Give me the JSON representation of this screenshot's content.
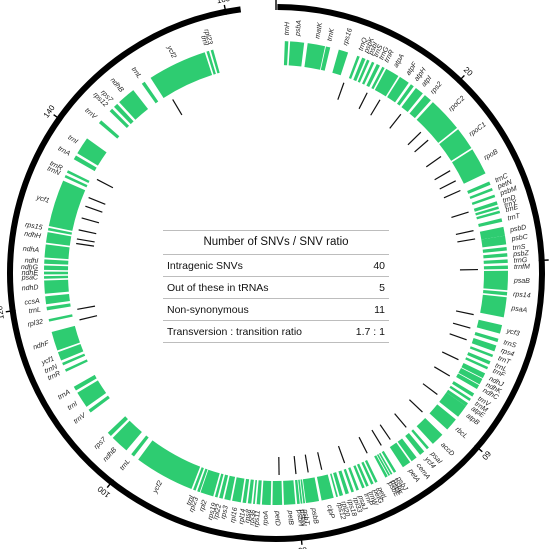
{
  "genome_map": {
    "total_kb": 165,
    "ticks": [
      {
        "pos": 0,
        "label": "0"
      },
      {
        "pos": 20,
        "label": "20"
      },
      {
        "pos": 40,
        "label": "40"
      },
      {
        "pos": 60,
        "label": "60"
      },
      {
        "pos": 80,
        "label": "80"
      },
      {
        "pos": 100,
        "label": "100"
      },
      {
        "pos": 120,
        "label": "120"
      },
      {
        "pos": 140,
        "label": "140"
      },
      {
        "pos": 160,
        "label": "160"
      }
    ],
    "gene_color": "#2ecc71",
    "snv_color": "#111111",
    "genes": [
      {
        "name": "trnH",
        "start": 1.0,
        "end": 1.4
      },
      {
        "name": "psbA",
        "start": 1.6,
        "end": 3.2
      },
      {
        "name": "matK",
        "start": 3.6,
        "end": 5.6
      },
      {
        "name": "trnK",
        "start": 5.7,
        "end": 6.2
      },
      {
        "name": "rps16",
        "start": 7.2,
        "end": 8.3
      },
      {
        "name": "trnQ",
        "start": 9.4,
        "end": 9.7
      },
      {
        "name": "psbK",
        "start": 10.0,
        "end": 10.4
      },
      {
        "name": "psbI",
        "start": 10.6,
        "end": 10.9
      },
      {
        "name": "trnS",
        "start": 11.2,
        "end": 11.5
      },
      {
        "name": "trnG",
        "start": 11.8,
        "end": 12.2
      },
      {
        "name": "trnR",
        "start": 12.5,
        "end": 12.8
      },
      {
        "name": "atpA",
        "start": 13.0,
        "end": 14.6
      },
      {
        "name": "atpF",
        "start": 14.8,
        "end": 16.0
      },
      {
        "name": "atpH",
        "start": 16.3,
        "end": 16.7
      },
      {
        "name": "atpI",
        "start": 17.0,
        "end": 18.0
      },
      {
        "name": "rps2",
        "start": 18.3,
        "end": 19.2
      },
      {
        "name": "rpoC2",
        "start": 19.5,
        "end": 23.5
      },
      {
        "name": "rpoC1",
        "start": 23.7,
        "end": 26.3
      },
      {
        "name": "rpoB",
        "start": 26.5,
        "end": 29.6
      },
      {
        "name": "trnC",
        "start": 30.6,
        "end": 31.0
      },
      {
        "name": "petN",
        "start": 31.4,
        "end": 31.7
      },
      {
        "name": "psbM",
        "start": 32.2,
        "end": 32.5
      },
      {
        "name": "trnD",
        "start": 33.0,
        "end": 33.4
      },
      {
        "name": "trnY",
        "start": 33.6,
        "end": 33.9
      },
      {
        "name": "trnE",
        "start": 34.1,
        "end": 34.4
      },
      {
        "name": "trnT",
        "start": 35.0,
        "end": 35.4
      },
      {
        "name": "psbD",
        "start": 36.0,
        "end": 37.0
      },
      {
        "name": "psbC",
        "start": 37.0,
        "end": 38.0
      },
      {
        "name": "trnS",
        "start": 38.3,
        "end": 38.7
      },
      {
        "name": "psbZ",
        "start": 39.0,
        "end": 39.4
      },
      {
        "name": "trnG",
        "start": 39.7,
        "end": 40.1
      },
      {
        "name": "trnfM",
        "start": 40.4,
        "end": 40.8
      },
      {
        "name": "psaB",
        "start": 41.0,
        "end": 43.2
      },
      {
        "name": "rps14",
        "start": 43.4,
        "end": 43.8
      },
      {
        "name": "psaA",
        "start": 44.0,
        "end": 46.3
      },
      {
        "name": "ycf3",
        "start": 47.2,
        "end": 48.2
      },
      {
        "name": "trnS",
        "start": 48.8,
        "end": 49.2
      },
      {
        "name": "rps4",
        "start": 49.6,
        "end": 50.3
      },
      {
        "name": "trnT",
        "start": 50.7,
        "end": 51.0
      },
      {
        "name": "trnL",
        "start": 51.5,
        "end": 51.9
      },
      {
        "name": "trnF",
        "start": 52.2,
        "end": 52.5
      },
      {
        "name": "ndhJ",
        "start": 53.0,
        "end": 53.6
      },
      {
        "name": "ndhK",
        "start": 53.7,
        "end": 54.4
      },
      {
        "name": "ndhC",
        "start": 54.5,
        "end": 55.0
      },
      {
        "name": "trnV",
        "start": 55.6,
        "end": 56.0
      },
      {
        "name": "trnM",
        "start": 56.3,
        "end": 56.6
      },
      {
        "name": "atpE",
        "start": 56.9,
        "end": 57.3
      },
      {
        "name": "atpB",
        "start": 57.3,
        "end": 58.8
      },
      {
        "name": "rbcL",
        "start": 59.2,
        "end": 60.7
      },
      {
        "name": "accD",
        "start": 61.5,
        "end": 63.0
      },
      {
        "name": "psaI",
        "start": 63.6,
        "end": 63.9
      },
      {
        "name": "ycf4",
        "start": 64.3,
        "end": 64.9
      },
      {
        "name": "cemA",
        "start": 65.4,
        "end": 66.1
      },
      {
        "name": "petA",
        "start": 66.3,
        "end": 67.3
      },
      {
        "name": "psbJ",
        "start": 68.2,
        "end": 68.5
      },
      {
        "name": "psbL",
        "start": 68.7,
        "end": 68.9
      },
      {
        "name": "psbF",
        "start": 69.0,
        "end": 69.2
      },
      {
        "name": "psbE",
        "start": 69.3,
        "end": 69.6
      },
      {
        "name": "petL",
        "start": 70.6,
        "end": 70.9
      },
      {
        "name": "petG",
        "start": 71.1,
        "end": 71.4
      },
      {
        "name": "trnW",
        "start": 71.7,
        "end": 72.0
      },
      {
        "name": "trnP",
        "start": 72.2,
        "end": 72.5
      },
      {
        "name": "psaJ",
        "start": 72.9,
        "end": 73.2
      },
      {
        "name": "rpl33",
        "start": 73.5,
        "end": 73.8
      },
      {
        "name": "rps18",
        "start": 74.1,
        "end": 74.5
      },
      {
        "name": "rpl20",
        "start": 74.8,
        "end": 75.2
      },
      {
        "name": "rps12",
        "start": 75.4,
        "end": 75.6
      },
      {
        "name": "clpP",
        "start": 75.9,
        "end": 77.3
      },
      {
        "name": "psbB",
        "start": 77.6,
        "end": 79.1
      },
      {
        "name": "psbT",
        "start": 79.2,
        "end": 79.4
      },
      {
        "name": "psbN",
        "start": 79.5,
        "end": 79.7
      },
      {
        "name": "psbH",
        "start": 79.8,
        "end": 80.1
      },
      {
        "name": "petB",
        "start": 80.3,
        "end": 81.6
      },
      {
        "name": "petD",
        "start": 81.8,
        "end": 82.9
      },
      {
        "name": "rpoA",
        "start": 83.1,
        "end": 84.1
      },
      {
        "name": "rps11",
        "start": 84.3,
        "end": 84.7
      },
      {
        "name": "rpl36",
        "start": 84.9,
        "end": 85.1
      },
      {
        "name": "rps8",
        "start": 85.3,
        "end": 85.7
      },
      {
        "name": "rpl14",
        "start": 85.9,
        "end": 86.3
      },
      {
        "name": "rpl16",
        "start": 86.5,
        "end": 87.5
      },
      {
        "name": "rps3",
        "start": 87.7,
        "end": 88.4
      },
      {
        "name": "rpl22",
        "start": 88.6,
        "end": 89.0
      },
      {
        "name": "rps19",
        "start": 89.2,
        "end": 89.5
      },
      {
        "name": "rpl2",
        "start": 89.7,
        "end": 91.2
      },
      {
        "name": "rpl23",
        "start": 91.3,
        "end": 91.6
      },
      {
        "name": "trnI",
        "start": 91.8,
        "end": 92.1
      },
      {
        "name": "ycf2",
        "start": 92.3,
        "end": 99.2
      },
      {
        "name": "trnL",
        "start": 99.8,
        "end": 100.2
      },
      {
        "name": "ndhB",
        "start": 100.9,
        "end": 103.0
      },
      {
        "name": "rps7",
        "start": 103.3,
        "end": 103.8
      },
      {
        "name": "trnV",
        "start": 106.8,
        "end": 107.2
      },
      {
        "name": "trnI",
        "start": 107.6,
        "end": 109.5
      },
      {
        "name": "trnA",
        "start": 109.8,
        "end": 110.3
      },
      {
        "name": "trnR",
        "start": 112.2,
        "end": 112.5
      },
      {
        "name": "trnN",
        "start": 113.0,
        "end": 113.3
      },
      {
        "name": "ycf1",
        "start": 113.6,
        "end": 114.6
      },
      {
        "name": "ndhF",
        "start": 114.8,
        "end": 117.0
      },
      {
        "name": "rpl32",
        "start": 118.2,
        "end": 118.5
      },
      {
        "name": "trnL",
        "start": 119.5,
        "end": 119.9
      },
      {
        "name": "ccsA",
        "start": 120.2,
        "end": 121.1
      },
      {
        "name": "ndhD",
        "start": 121.4,
        "end": 122.9
      },
      {
        "name": "psaC",
        "start": 123.1,
        "end": 123.4
      },
      {
        "name": "ndhE",
        "start": 123.6,
        "end": 123.9
      },
      {
        "name": "ndhG",
        "start": 124.1,
        "end": 124.6
      },
      {
        "name": "ndhI",
        "start": 124.8,
        "end": 125.3
      },
      {
        "name": "ndhA",
        "start": 125.5,
        "end": 127.0
      },
      {
        "name": "ndhH",
        "start": 127.2,
        "end": 128.4
      },
      {
        "name": "rps15",
        "start": 128.6,
        "end": 128.9
      },
      {
        "name": "ycf1",
        "start": 129.1,
        "end": 134.5
      },
      {
        "name": "trnN",
        "start": 134.9,
        "end": 135.2
      },
      {
        "name": "trnR",
        "start": 135.5,
        "end": 135.8
      },
      {
        "name": "trnA",
        "start": 137.2,
        "end": 137.7
      },
      {
        "name": "trnI",
        "start": 138.0,
        "end": 140.0
      },
      {
        "name": "trnV",
        "start": 142.2,
        "end": 142.6
      },
      {
        "name": "rps12",
        "start": 144.0,
        "end": 144.4
      },
      {
        "name": "rps7",
        "start": 144.7,
        "end": 145.2
      },
      {
        "name": "ndhB",
        "start": 145.5,
        "end": 147.6
      },
      {
        "name": "trnL",
        "start": 148.8,
        "end": 149.2
      },
      {
        "name": "ycf2",
        "start": 150.0,
        "end": 156.8
      },
      {
        "name": "trnI",
        "start": 157.0,
        "end": 157.3
      },
      {
        "name": "rpl23",
        "start": 157.5,
        "end": 157.8
      }
    ],
    "snv_positions": [
      9.0,
      12.3,
      14.2,
      17.5,
      21.0,
      22.4,
      25.1,
      27.3,
      28.8,
      30.2,
      33.2,
      35.7,
      36.8,
      40.8,
      46.7,
      48.5,
      50.1,
      52.9,
      55.3,
      58.2,
      61.2,
      64.1,
      66.7,
      68.1,
      70.2,
      73.4,
      76.5,
      78.3,
      79.9,
      82.1,
      117.6,
      119.0,
      127.6,
      128.2,
      129.4,
      131.0,
      132.6,
      133.8,
      136.4,
      150.9
    ]
  },
  "stats": {
    "title": "Number of SNVs / SNV ratio",
    "rows": [
      {
        "label": "Intragenic SNVs",
        "value": "40"
      },
      {
        "label": "Out of these in tRNAs",
        "value": "5"
      },
      {
        "label": "Non-synonymous",
        "value": "11"
      },
      {
        "label": "Transversion : transition ratio",
        "value": "1.7 : 1"
      }
    ]
  }
}
